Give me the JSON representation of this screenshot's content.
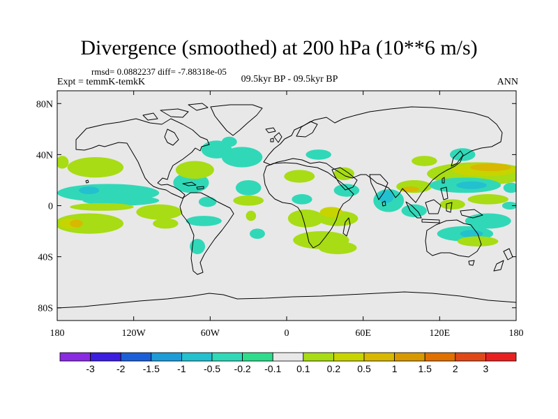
{
  "header": {
    "title": "Divergence (smoothed) at 200 hPa (10**6 m/s)",
    "stats": "rmsd= 0.0882237 diff= -7.88318e-05",
    "experiment": "Expt = temmK-temkK",
    "period": "09.5kyr BP - 09.5kyr BP",
    "season": "ANN"
  },
  "chart_data": {
    "type": "heatmap",
    "title": "Divergence (smoothed) at 200 hPa (10**6 m/s)",
    "projection": "cylindrical equidistant",
    "x_range": [
      -180,
      180
    ],
    "y_range": [
      -90,
      90
    ],
    "x_ticks": [
      {
        "value": -180,
        "label": "180"
      },
      {
        "value": -120,
        "label": "120W"
      },
      {
        "value": -60,
        "label": "60W"
      },
      {
        "value": 0,
        "label": "0"
      },
      {
        "value": 60,
        "label": "60E"
      },
      {
        "value": 120,
        "label": "120E"
      },
      {
        "value": 180,
        "label": "180"
      }
    ],
    "y_ticks": [
      {
        "value": 80,
        "label": "80N"
      },
      {
        "value": 40,
        "label": "40N"
      },
      {
        "value": 0,
        "label": "0"
      },
      {
        "value": -40,
        "label": "40S"
      },
      {
        "value": -80,
        "label": "80S"
      }
    ],
    "colorbar": {
      "colors": [
        "#8a2be2",
        "#3b1ee0",
        "#1b5fd8",
        "#1d9cd8",
        "#23c0d0",
        "#30d8b8",
        "#2edc8c",
        "#e8e8e8",
        "#a8dc14",
        "#c8d400",
        "#d8b800",
        "#d89800",
        "#e07000",
        "#e04818",
        "#e82020"
      ],
      "labels": [
        "-3",
        "-2",
        "-1.5",
        "-1",
        "-0.5",
        "-0.2",
        "-0.1",
        "0.1",
        "0.2",
        "0.5",
        "1",
        "1.5",
        "2",
        "3"
      ]
    },
    "anomalies": [
      {
        "lon": -150,
        "lat": 30,
        "rx": 22,
        "ry": 8,
        "level": 0.1
      },
      {
        "lon": -176,
        "lat": 34,
        "rx": 5,
        "ry": 5,
        "level": 0.1
      },
      {
        "lon": -140,
        "lat": 10,
        "rx": 40,
        "ry": 7,
        "level": -0.1
      },
      {
        "lon": -155,
        "lat": 12,
        "rx": 8,
        "ry": 3,
        "level": -0.2
      },
      {
        "lon": -130,
        "lat": 4,
        "rx": 30,
        "ry": 4,
        "level": -0.1
      },
      {
        "lon": -145,
        "lat": -1,
        "rx": 25,
        "ry": 3,
        "level": 0.1
      },
      {
        "lon": -155,
        "lat": -14,
        "rx": 27,
        "ry": 8,
        "level": 0.1
      },
      {
        "lon": -170,
        "lat": -14,
        "rx": 8,
        "ry": 4,
        "level": 0.2
      },
      {
        "lon": -165,
        "lat": -14,
        "rx": 5,
        "ry": 3,
        "level": 0.5
      },
      {
        "lon": -100,
        "lat": -5,
        "rx": 18,
        "ry": 6,
        "level": 0.1
      },
      {
        "lon": -95,
        "lat": -14,
        "rx": 10,
        "ry": 4,
        "level": 0.1
      },
      {
        "lon": -75,
        "lat": 18,
        "rx": 14,
        "ry": 8,
        "level": -0.1
      },
      {
        "lon": -62,
        "lat": 3,
        "rx": 7,
        "ry": 4,
        "level": -0.1
      },
      {
        "lon": -65,
        "lat": -12,
        "rx": 14,
        "ry": 4,
        "level": -0.1
      },
      {
        "lon": -70,
        "lat": -32,
        "rx": 6,
        "ry": 6,
        "level": -0.1
      },
      {
        "lon": -55,
        "lat": 44,
        "rx": 12,
        "ry": 7,
        "level": -0.1
      },
      {
        "lon": -45,
        "lat": 50,
        "rx": 6,
        "ry": 4,
        "level": -0.1
      },
      {
        "lon": -72,
        "lat": 28,
        "rx": 15,
        "ry": 7,
        "level": 0.1
      },
      {
        "lon": -35,
        "lat": 38,
        "rx": 16,
        "ry": 8,
        "level": -0.1
      },
      {
        "lon": -30,
        "lat": 14,
        "rx": 10,
        "ry": 6,
        "level": -0.1
      },
      {
        "lon": -30,
        "lat": 4,
        "rx": 12,
        "ry": 4,
        "level": 0.1
      },
      {
        "lon": -23,
        "lat": -22,
        "rx": 6,
        "ry": 4,
        "level": -0.1
      },
      {
        "lon": -28,
        "lat": -8,
        "rx": 4,
        "ry": 4,
        "level": 0.1
      },
      {
        "lon": 10,
        "lat": 23,
        "rx": 12,
        "ry": 5,
        "level": 0.1
      },
      {
        "lon": 25,
        "lat": 40,
        "rx": 10,
        "ry": 4,
        "level": -0.1
      },
      {
        "lon": 12,
        "lat": 5,
        "rx": 8,
        "ry": 4,
        "level": -0.1
      },
      {
        "lon": 15,
        "lat": -10,
        "rx": 14,
        "ry": 7,
        "level": 0.1
      },
      {
        "lon": 40,
        "lat": -10,
        "rx": 16,
        "ry": 6,
        "level": 0.1
      },
      {
        "lon": 35,
        "lat": -5,
        "rx": 9,
        "ry": 4,
        "level": 0.2
      },
      {
        "lon": 27,
        "lat": -27,
        "rx": 22,
        "ry": 7,
        "level": 0.1
      },
      {
        "lon": 40,
        "lat": -33,
        "rx": 15,
        "ry": 5,
        "level": 0.1
      },
      {
        "lon": 47,
        "lat": 12,
        "rx": 10,
        "ry": 5,
        "level": -0.1
      },
      {
        "lon": 45,
        "lat": 25,
        "rx": 8,
        "ry": 5,
        "level": 0.1
      },
      {
        "lon": 80,
        "lat": 4,
        "rx": 12,
        "ry": 9,
        "level": -0.1
      },
      {
        "lon": 78,
        "lat": 7,
        "rx": 6,
        "ry": 5,
        "level": -0.2
      },
      {
        "lon": 100,
        "lat": 15,
        "rx": 14,
        "ry": 5,
        "level": 0.1
      },
      {
        "lon": 97,
        "lat": 13,
        "rx": 7,
        "ry": 2,
        "level": 0.5
      },
      {
        "lon": 100,
        "lat": -4,
        "rx": 10,
        "ry": 5,
        "level": -0.1
      },
      {
        "lon": 108,
        "lat": 35,
        "rx": 10,
        "ry": 4,
        "level": 0.1
      },
      {
        "lon": 138,
        "lat": 40,
        "rx": 10,
        "ry": 5,
        "level": -0.1
      },
      {
        "lon": 150,
        "lat": 25,
        "rx": 40,
        "ry": 9,
        "level": 0.1
      },
      {
        "lon": 155,
        "lat": 28,
        "rx": 25,
        "ry": 5,
        "level": 0.2
      },
      {
        "lon": 160,
        "lat": 30,
        "rx": 16,
        "ry": 3,
        "level": 0.5
      },
      {
        "lon": 140,
        "lat": 16,
        "rx": 28,
        "ry": 6,
        "level": -0.1
      },
      {
        "lon": 145,
        "lat": 16,
        "rx": 12,
        "ry": 3,
        "level": -0.2
      },
      {
        "lon": 130,
        "lat": 1,
        "rx": 10,
        "ry": 4,
        "level": 0.1
      },
      {
        "lon": 158,
        "lat": 5,
        "rx": 16,
        "ry": 4,
        "level": 0.1
      },
      {
        "lon": 158,
        "lat": -12,
        "rx": 18,
        "ry": 6,
        "level": -0.1
      },
      {
        "lon": 140,
        "lat": -22,
        "rx": 22,
        "ry": 6,
        "level": -0.1
      },
      {
        "lon": 145,
        "lat": -22,
        "rx": 9,
        "ry": 3,
        "level": -0.2
      },
      {
        "lon": 150,
        "lat": -28,
        "rx": 16,
        "ry": 4,
        "level": 0.1
      },
      {
        "lon": 176,
        "lat": 14,
        "rx": 6,
        "ry": 4,
        "level": -0.1
      },
      {
        "lon": 175,
        "lat": 0,
        "rx": 6,
        "ry": 3,
        "level": -0.1
      }
    ]
  }
}
